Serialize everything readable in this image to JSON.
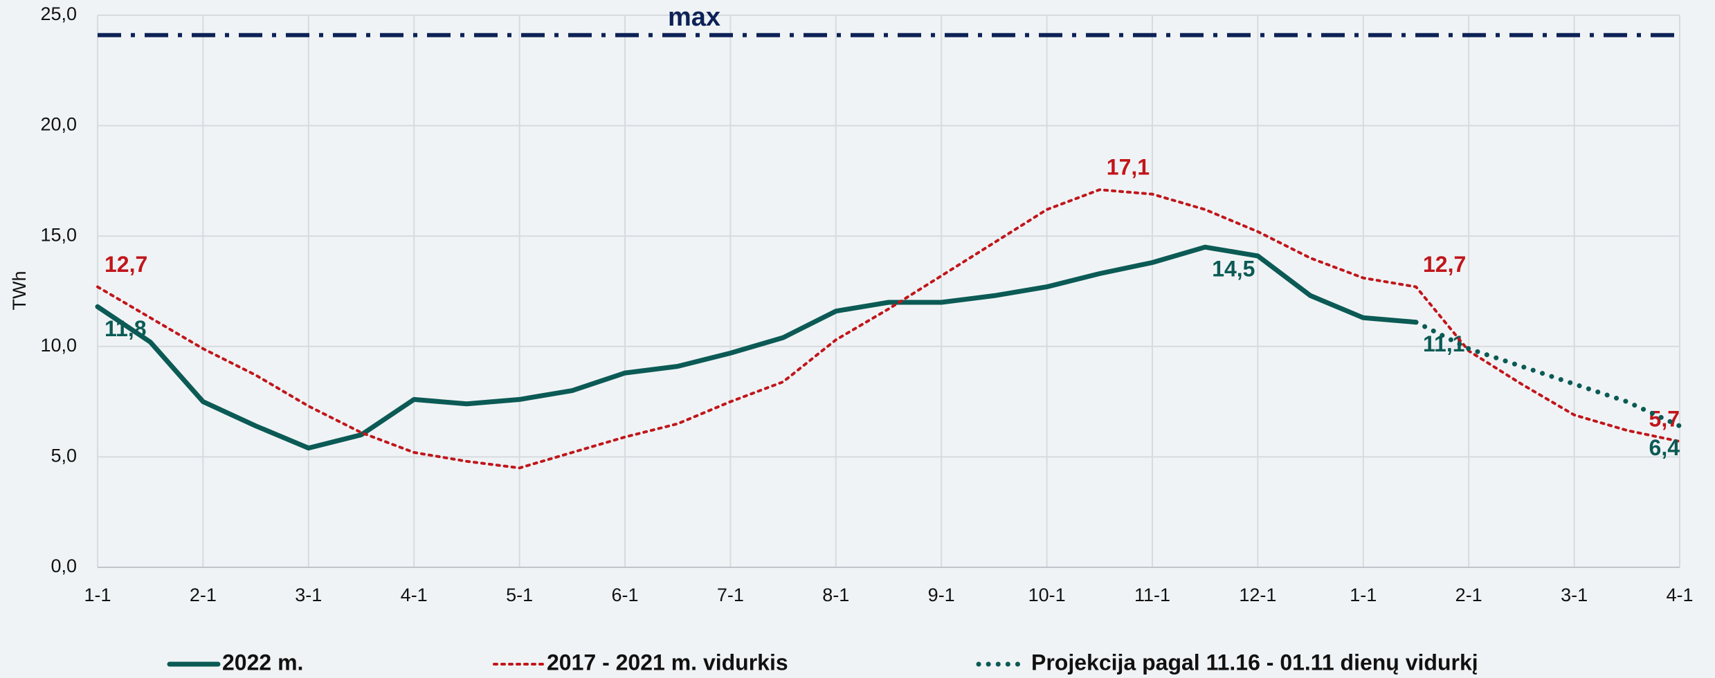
{
  "chart_data": {
    "type": "line",
    "y_label": "TWh",
    "categories": [
      "1-1",
      null,
      "2-1",
      null,
      "3-1",
      null,
      "4-1",
      null,
      "5-1",
      null,
      "6-1",
      null,
      "7-1",
      null,
      "8-1",
      null,
      "9-1",
      null,
      "10-1",
      null,
      "11-1",
      null,
      "12-1",
      null,
      "1-1",
      null,
      "2-1",
      null,
      "3-1",
      null,
      "4-1"
    ],
    "ylim": [
      0,
      25
    ],
    "yticks": [
      {
        "value": 0,
        "label": "0,0"
      },
      {
        "value": 5,
        "label": "5,0"
      },
      {
        "value": 10,
        "label": "10,0"
      },
      {
        "value": 15,
        "label": "15,0"
      },
      {
        "value": 20,
        "label": "20,0"
      },
      {
        "value": 25,
        "label": "25,0"
      }
    ],
    "grid": true,
    "legend": "bottom",
    "max_line": {
      "label": "max",
      "value": 24.1,
      "color": "#0d2257"
    },
    "series": [
      {
        "name": "2022 m.",
        "color": "#0b5a55",
        "style": "solid",
        "values": [
          11.8,
          10.2,
          7.5,
          6.4,
          5.4,
          6.0,
          7.6,
          7.4,
          7.6,
          8.0,
          8.8,
          9.1,
          9.7,
          10.4,
          11.6,
          12.0,
          12.0,
          12.3,
          12.7,
          13.3,
          13.8,
          14.5,
          14.1,
          12.3,
          11.3,
          11.1,
          null,
          null,
          null,
          null,
          null
        ],
        "value_labels": [
          "11,8",
          null,
          null,
          null,
          null,
          null,
          null,
          null,
          null,
          null,
          null,
          null,
          null,
          null,
          null,
          null,
          null,
          null,
          null,
          null,
          null,
          "14,5",
          null,
          null,
          null,
          "11,1",
          null,
          null,
          null,
          null,
          null
        ]
      },
      {
        "name": "2017 - 2021 m. vidurkis",
        "color": "#c0161b",
        "style": "dotted",
        "values": [
          12.7,
          11.3,
          9.9,
          8.7,
          7.3,
          6.1,
          5.2,
          4.8,
          4.5,
          5.2,
          5.9,
          6.5,
          7.5,
          8.4,
          10.3,
          11.7,
          13.2,
          14.7,
          16.2,
          17.1,
          16.9,
          16.2,
          15.2,
          14.0,
          13.1,
          12.7,
          9.8,
          8.3,
          6.9,
          6.2,
          5.7
        ],
        "value_labels": [
          "12,7",
          null,
          null,
          null,
          null,
          null,
          null,
          null,
          null,
          null,
          null,
          null,
          null,
          null,
          null,
          null,
          null,
          null,
          null,
          "17,1",
          null,
          null,
          null,
          null,
          null,
          "12,7",
          null,
          null,
          null,
          null,
          "5,7"
        ]
      },
      {
        "name": "Projekcija pagal 11.16 - 01.11 dienų vidurkį",
        "color": "#0b5a55",
        "style": "dots",
        "values": [
          null,
          null,
          null,
          null,
          null,
          null,
          null,
          null,
          null,
          null,
          null,
          null,
          null,
          null,
          null,
          null,
          null,
          null,
          null,
          null,
          null,
          null,
          null,
          null,
          null,
          11.1,
          9.9,
          9.1,
          8.3,
          7.5,
          6.4
        ],
        "value_labels": [
          null,
          null,
          null,
          null,
          null,
          null,
          null,
          null,
          null,
          null,
          null,
          null,
          null,
          null,
          null,
          null,
          null,
          null,
          null,
          null,
          null,
          null,
          null,
          null,
          null,
          null,
          null,
          null,
          null,
          null,
          "6,4"
        ]
      }
    ]
  }
}
